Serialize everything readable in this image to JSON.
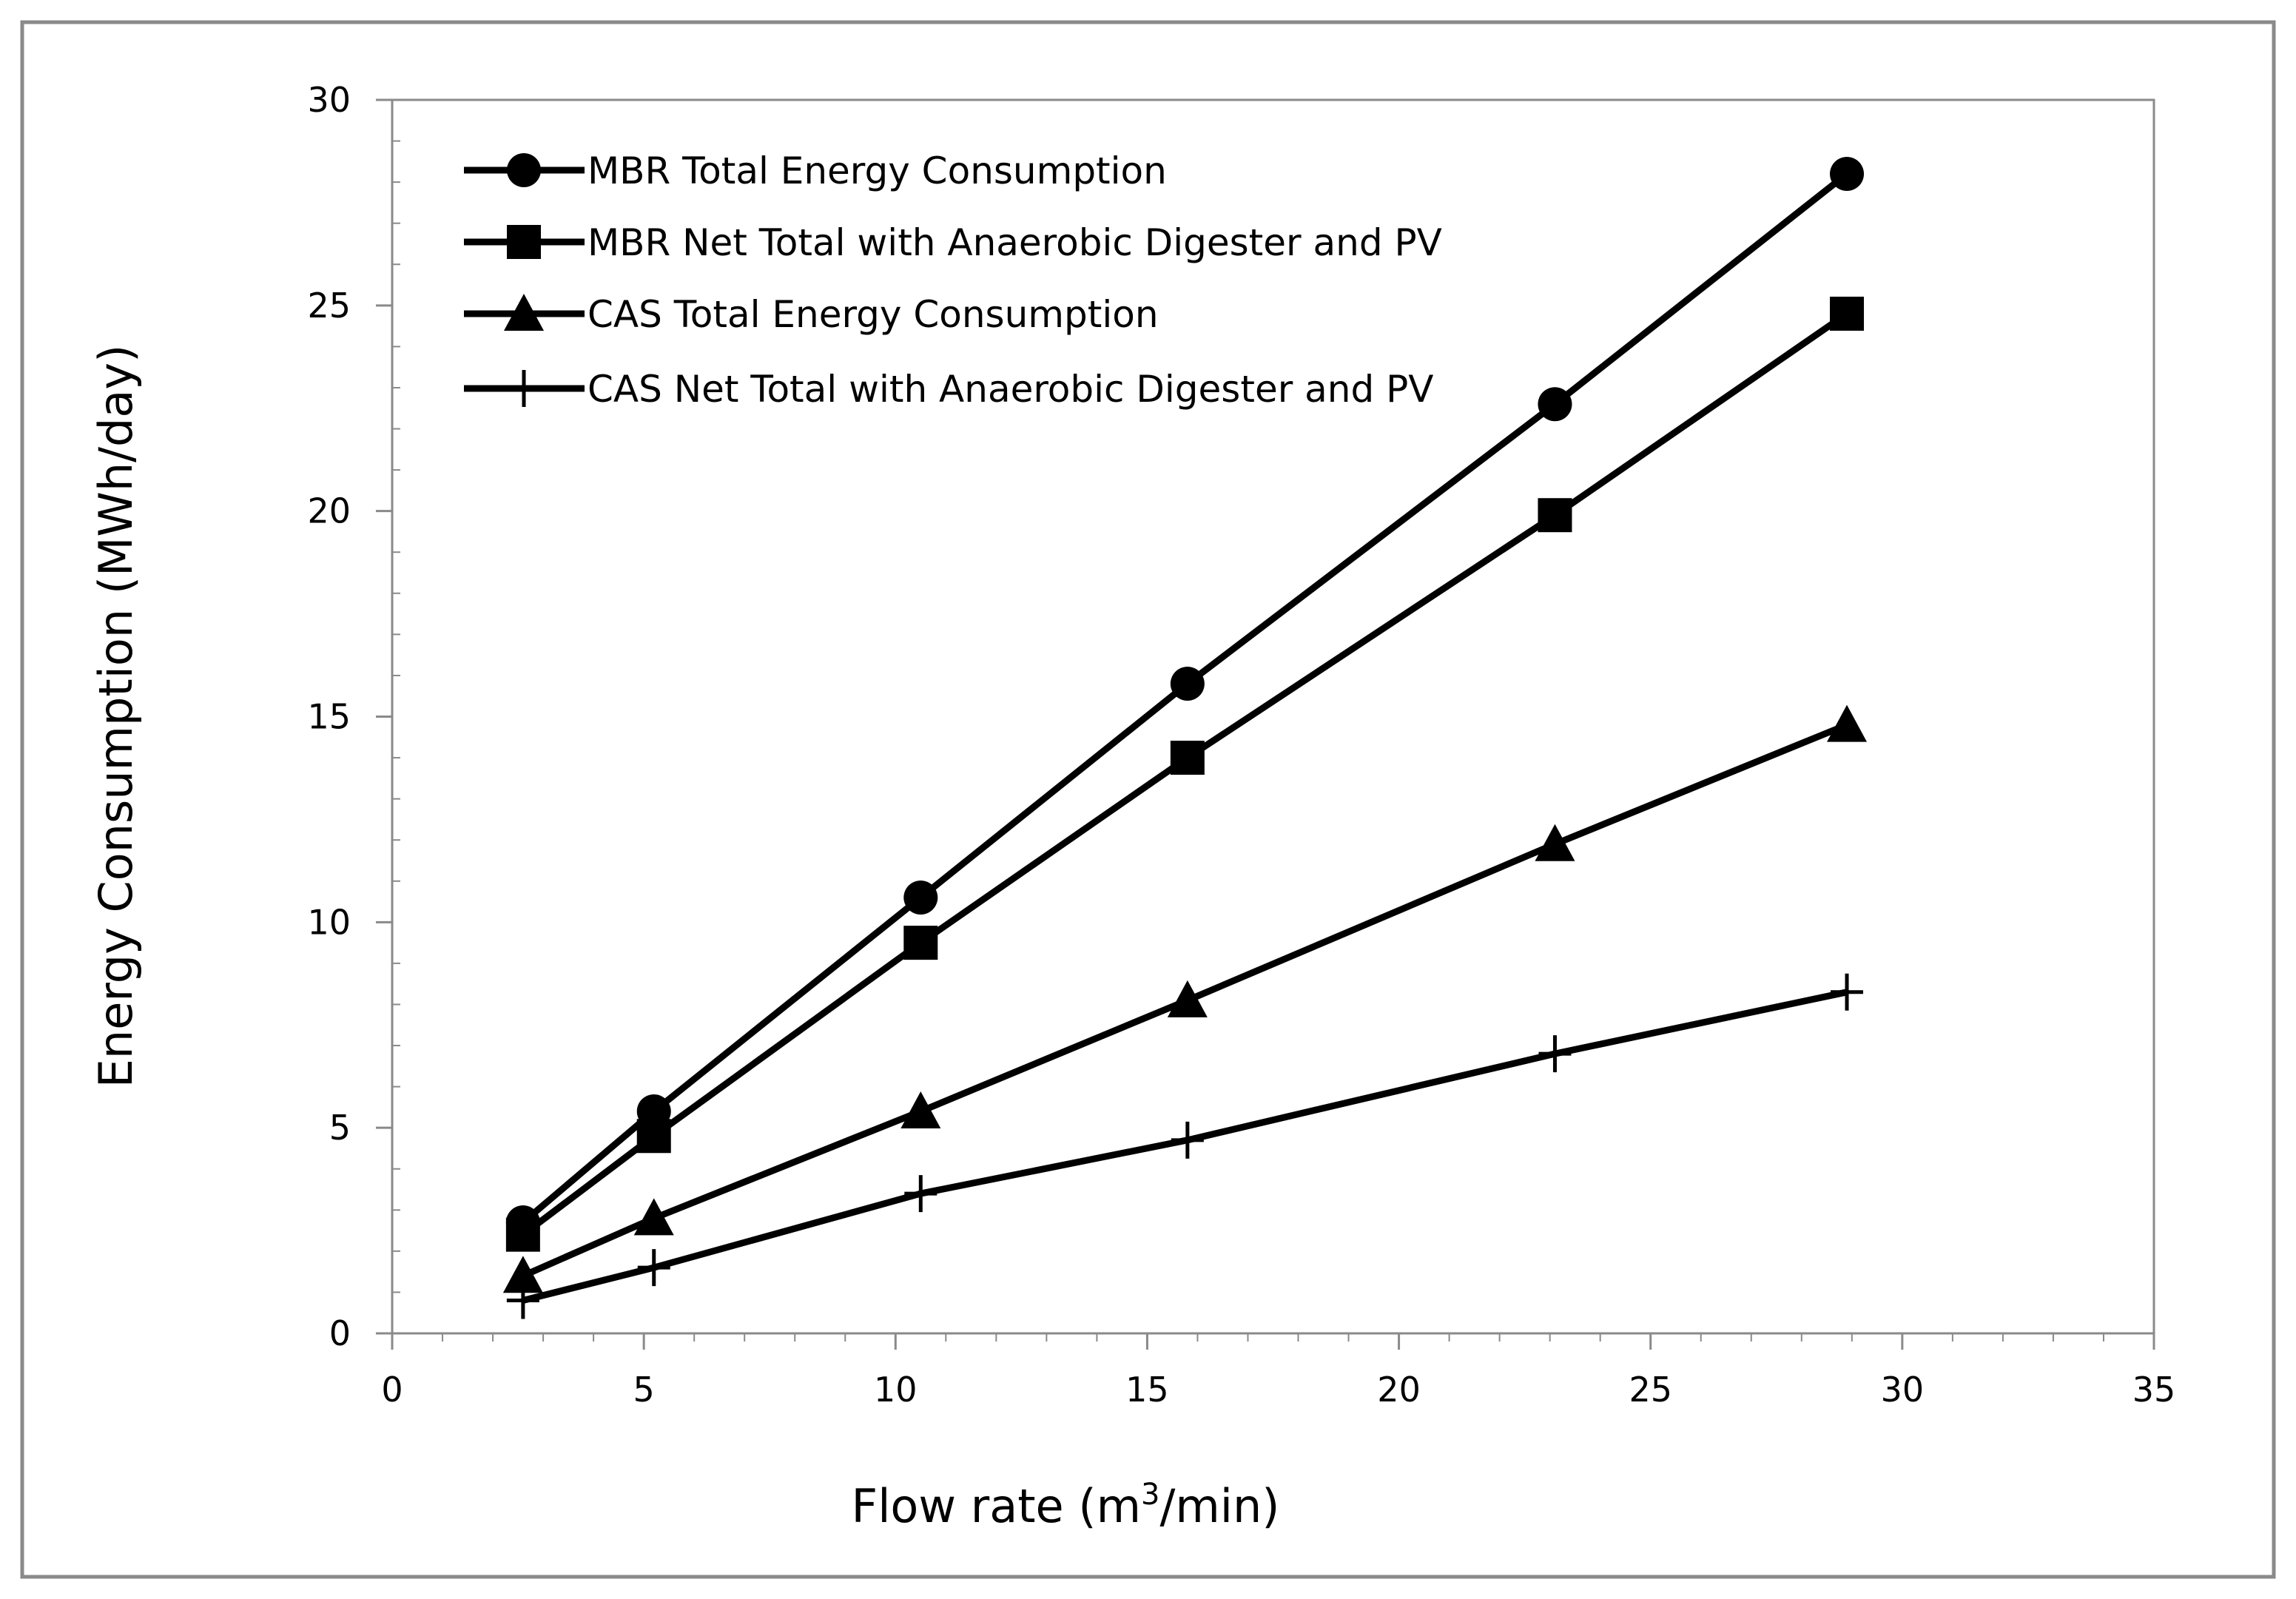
{
  "chart_data": {
    "type": "line",
    "title": "",
    "xlabel": "Flow rate (m3/min)",
    "xlabel_parts": {
      "main": "Flow rate (m",
      "sup": "3",
      "tail": "/min)"
    },
    "ylabel": "Energy Consumption (MWh/day)",
    "xlim": [
      0,
      35
    ],
    "ylim": [
      0,
      30
    ],
    "x_ticks": [
      "0",
      "5",
      "10",
      "15",
      "20",
      "25",
      "30",
      "35"
    ],
    "y_ticks": [
      "0",
      "5",
      "10",
      "15",
      "20",
      "25",
      "30"
    ],
    "grid": false,
    "legend_position": "top-left",
    "x": [
      2.6,
      5.2,
      10.5,
      15.8,
      23.1,
      28.9
    ],
    "series": [
      {
        "name": "MBR Total Energy Consumption",
        "marker": "circle",
        "values": [
          2.7,
          5.4,
          10.6,
          15.8,
          22.6,
          28.2
        ]
      },
      {
        "name": "MBR Net Total with Anaerobic Digester and PV",
        "marker": "square",
        "values": [
          2.4,
          4.8,
          9.5,
          14.0,
          19.9,
          24.8
        ]
      },
      {
        "name": "CAS Total Energy Consumption",
        "marker": "triangle",
        "values": [
          1.4,
          2.8,
          5.4,
          8.1,
          11.9,
          14.8
        ]
      },
      {
        "name": "CAS Net Total with Anaerobic Digester and PV",
        "marker": "plus",
        "values": [
          0.8,
          1.6,
          3.4,
          4.7,
          6.8,
          8.3
        ]
      }
    ]
  }
}
